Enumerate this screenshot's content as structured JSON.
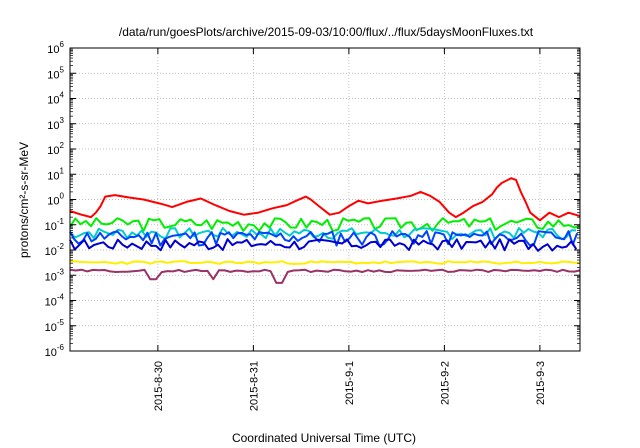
{
  "chart_data": {
    "type": "line",
    "title": "/data/run/goesPlots/archive/2015-09-03/10:00/flux/../flux/5daysMoonFluxes.txt",
    "xlabel": "Coordinated Universal Time (UTC)",
    "ylabel": "protons/cm²-s-sr-MeV",
    "yscale": "log",
    "ylim_exponents": [
      -6,
      6
    ],
    "ytick_exponents": [
      -6,
      -5,
      -4,
      -3,
      -2,
      -1,
      0,
      1,
      2,
      3,
      4,
      5,
      6
    ],
    "xlim_days": [
      "2015-08-29T02:00",
      "2015-09-03T10:00"
    ],
    "xticks": [
      {
        "label": "2015-8-30",
        "day": 1
      },
      {
        "label": "2015-8-31",
        "day": 2
      },
      {
        "label": "2015-9-1",
        "day": 3
      },
      {
        "label": "2015-9-2",
        "day": 4
      },
      {
        "label": "2015-9-3",
        "day": 5
      }
    ],
    "grid": true,
    "x_reference": "2015-08-29T00:00",
    "series": [
      {
        "color": "#ff0000",
        "points": [
          [
            0.08,
            0.35
          ],
          [
            0.2,
            0.25
          ],
          [
            0.3,
            0.2
          ],
          [
            0.35,
            0.3
          ],
          [
            0.4,
            0.55
          ],
          [
            0.45,
            1.3
          ],
          [
            0.55,
            1.5
          ],
          [
            0.7,
            1.2
          ],
          [
            0.85,
            1.0
          ],
          [
            0.95,
            0.8
          ],
          [
            1.05,
            0.65
          ],
          [
            1.15,
            0.5
          ],
          [
            1.3,
            0.8
          ],
          [
            1.45,
            1.1
          ],
          [
            1.6,
            0.6
          ],
          [
            1.75,
            0.35
          ],
          [
            1.9,
            0.25
          ],
          [
            2.05,
            0.3
          ],
          [
            2.2,
            0.45
          ],
          [
            2.35,
            0.6
          ],
          [
            2.45,
            0.9
          ],
          [
            2.55,
            1.3
          ],
          [
            2.6,
            1.0
          ],
          [
            2.7,
            0.5
          ],
          [
            2.8,
            0.25
          ],
          [
            2.9,
            0.3
          ],
          [
            3.0,
            0.55
          ],
          [
            3.1,
            0.9
          ],
          [
            3.2,
            0.7
          ],
          [
            3.35,
            0.9
          ],
          [
            3.5,
            1.1
          ],
          [
            3.65,
            1.4
          ],
          [
            3.75,
            2.0
          ],
          [
            3.85,
            1.4
          ],
          [
            3.95,
            0.8
          ],
          [
            4.05,
            0.3
          ],
          [
            4.12,
            0.2
          ],
          [
            4.2,
            0.3
          ],
          [
            4.3,
            0.55
          ],
          [
            4.4,
            0.8
          ],
          [
            4.5,
            1.6
          ],
          [
            4.55,
            3.0
          ],
          [
            4.6,
            4.5
          ],
          [
            4.7,
            7.0
          ],
          [
            4.75,
            6.0
          ],
          [
            4.8,
            2.0
          ],
          [
            4.85,
            0.8
          ],
          [
            4.9,
            0.3
          ],
          [
            5.0,
            0.15
          ],
          [
            5.1,
            0.3
          ],
          [
            5.2,
            0.2
          ],
          [
            5.3,
            0.3
          ],
          [
            5.42,
            0.22
          ]
        ]
      },
      {
        "color": "#00ee00",
        "base": 0.12,
        "amplitude": 0.25,
        "seed": 3,
        "period": 0.055,
        "range_days": [
          0.08,
          5.42
        ]
      },
      {
        "color": "#00cccc",
        "base": 0.05,
        "amplitude": 0.22,
        "seed": 7,
        "period": 0.05,
        "range_days": [
          0.08,
          5.42
        ]
      },
      {
        "color": "#0044ff",
        "base": 0.035,
        "amplitude": 0.28,
        "seed": 11,
        "period": 0.045,
        "range_days": [
          0.08,
          5.42
        ]
      },
      {
        "color": "#0000cc",
        "base": 0.018,
        "amplitude": 0.22,
        "seed": 17,
        "period": 0.05,
        "range_days": [
          0.08,
          5.42
        ]
      },
      {
        "color": "#ffee00",
        "base": 0.0032,
        "amplitude": 0.06,
        "seed": 23,
        "period": 0.06,
        "range_days": [
          0.08,
          5.42
        ]
      },
      {
        "color": "#993366",
        "base": 0.0015,
        "amplitude": 0.05,
        "seed": 29,
        "period": 0.06,
        "range_days": [
          0.08,
          5.42
        ],
        "dips": [
          [
            0.95,
            0.0007
          ],
          [
            1.58,
            0.0007
          ],
          [
            2.27,
            0.0005
          ]
        ]
      }
    ]
  }
}
